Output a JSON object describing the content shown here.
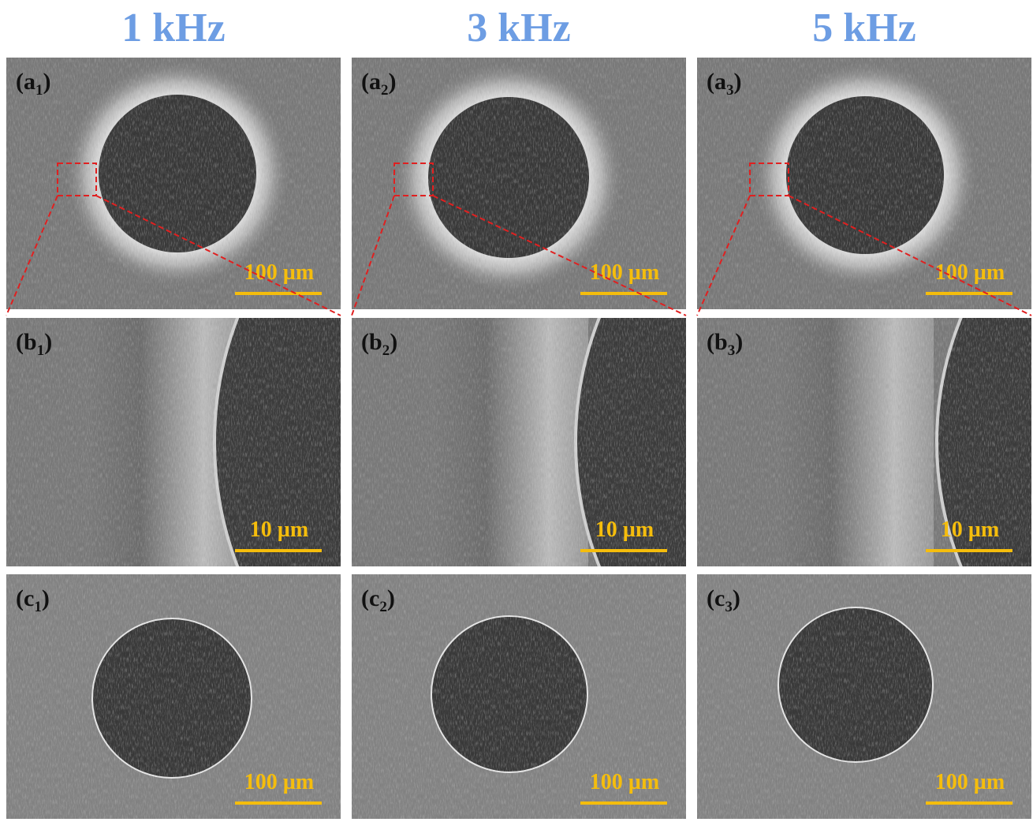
{
  "headers": [
    "1 kHz",
    "3 kHz",
    "5 kHz"
  ],
  "panels": [
    {
      "label": {
        "open": "(a",
        "sub": "1",
        "close": ")"
      },
      "scale_bar": "100 µm"
    },
    {
      "label": {
        "open": "(a",
        "sub": "2",
        "close": ")"
      },
      "scale_bar": "100 µm"
    },
    {
      "label": {
        "open": "(a",
        "sub": "3",
        "close": ")"
      },
      "scale_bar": "100 µm"
    },
    {
      "label": {
        "open": "(b",
        "sub": "1",
        "close": ")"
      },
      "scale_bar": "10 µm"
    },
    {
      "label": {
        "open": "(b",
        "sub": "2",
        "close": ")"
      },
      "scale_bar": "10 µm"
    },
    {
      "label": {
        "open": "(b",
        "sub": "3",
        "close": ")"
      },
      "scale_bar": "10 µm"
    },
    {
      "label": {
        "open": "(c",
        "sub": "1",
        "close": ")"
      },
      "scale_bar": "100 µm"
    },
    {
      "label": {
        "open": "(c",
        "sub": "2",
        "close": ")"
      },
      "scale_bar": "100 µm"
    },
    {
      "label": {
        "open": "(c",
        "sub": "3",
        "close": ")"
      },
      "scale_bar": "100 µm"
    }
  ]
}
